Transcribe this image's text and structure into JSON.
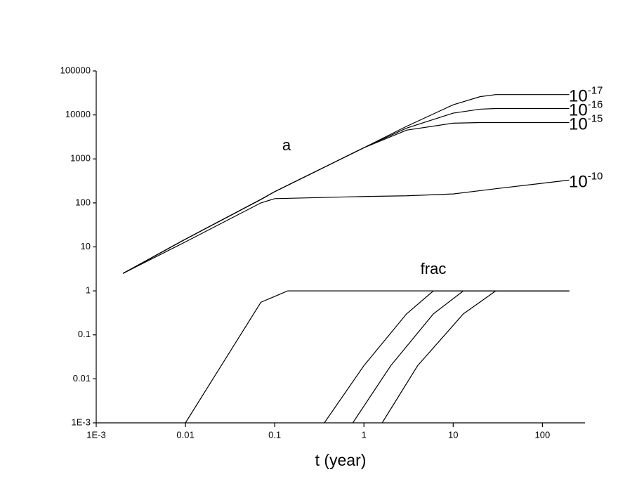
{
  "chart_data": {
    "type": "line",
    "x_label": "t (year)",
    "xscale": "log",
    "yscale": "log",
    "xlim": [
      0.001,
      300
    ],
    "ylim": [
      0.001,
      100000
    ],
    "xticks": [
      {
        "value": 0.001,
        "label": "1E-3"
      },
      0.01,
      0.1,
      1,
      10,
      100
    ],
    "yticks": [
      {
        "value": 0.001,
        "label": "1E-3"
      },
      0.01,
      0.1,
      1,
      10,
      100,
      1000,
      10000,
      100000
    ],
    "annotations": [
      "a",
      "frac"
    ],
    "x": [
      0.002,
      0.01,
      0.07,
      0.1,
      0.5,
      1,
      3,
      10,
      20,
      30,
      200
    ],
    "series": [
      {
        "name_base": "10",
        "name_exponent": "-17",
        "color": "#000000",
        "values": [
          2.5,
          15,
          120,
          180,
          900,
          1800,
          5500,
          17000,
          26000,
          29000,
          29000
        ]
      },
      {
        "name_base": "10",
        "name_exponent": "-16",
        "color": "#000000",
        "values": [
          2.5,
          15,
          120,
          180,
          900,
          1800,
          5000,
          11000,
          13500,
          14000,
          14000
        ]
      },
      {
        "name_base": "10",
        "name_exponent": "-15",
        "color": "#000000",
        "values": [
          2.5,
          15,
          120,
          180,
          900,
          1800,
          4500,
          6500,
          6700,
          6700,
          6700
        ]
      },
      {
        "name_base": "10",
        "name_exponent": "-10",
        "color": "#000000",
        "values": [
          2.5,
          13,
          100,
          125,
          135,
          140,
          145,
          160,
          190,
          210,
          330
        ]
      },
      {
        "color": "#000000",
        "x": [
          0.01,
          0.07,
          0.14,
          200
        ],
        "values": [
          0.001,
          0.55,
          1,
          1
        ]
      },
      {
        "color": "#000000",
        "x": [
          0.36,
          1,
          3,
          6,
          200
        ],
        "values": [
          0.001,
          0.02,
          0.3,
          1,
          1
        ]
      },
      {
        "color": "#000000",
        "x": [
          0.75,
          2,
          6,
          13,
          200
        ],
        "values": [
          0.001,
          0.02,
          0.3,
          1,
          1
        ]
      },
      {
        "color": "#000000",
        "x": [
          1.6,
          4,
          13,
          30,
          200
        ],
        "values": [
          0.001,
          0.02,
          0.3,
          1,
          1
        ]
      }
    ]
  }
}
